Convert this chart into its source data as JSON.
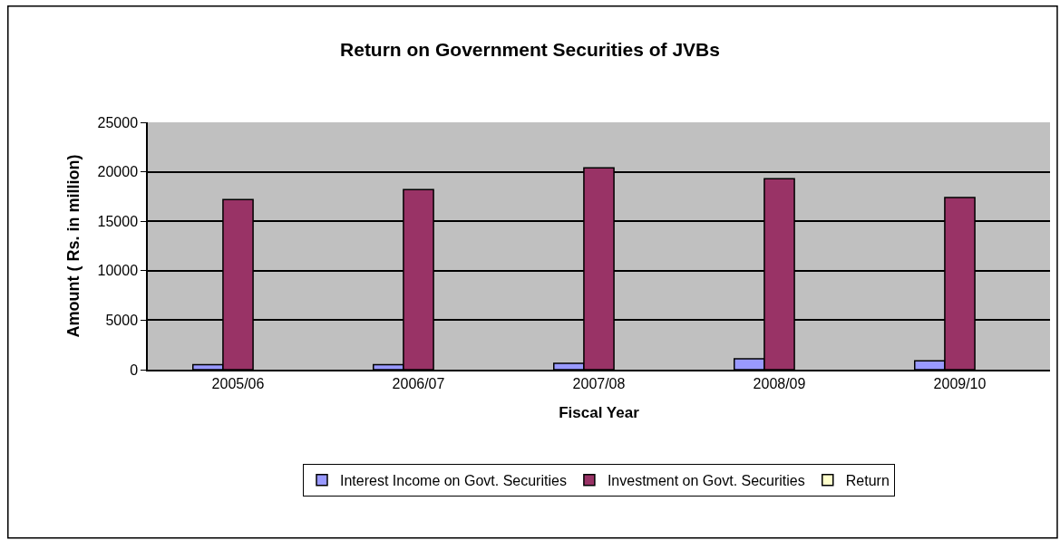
{
  "chart_data": {
    "type": "bar",
    "title": "Return on Government Securities of JVBs",
    "xlabel": "Fiscal Year",
    "ylabel": "Amount ( Rs. in million)",
    "categories": [
      "2005/06",
      "2006/07",
      "2007/08",
      "2008/09",
      "2009/10"
    ],
    "series": [
      {
        "name": "Interest Income on Govt. Securities",
        "color": "#9999ff",
        "values": [
          500,
          500,
          650,
          1100,
          900
        ]
      },
      {
        "name": "Investment on Govt. Securities",
        "color": "#993366",
        "values": [
          17200,
          18200,
          20400,
          19300,
          17400
        ]
      },
      {
        "name": "Return",
        "color": "#ffffcc",
        "values": [
          null,
          null,
          null,
          null,
          null
        ]
      }
    ],
    "ylim": [
      0,
      25000
    ],
    "yticks": [
      0,
      5000,
      10000,
      15000,
      20000,
      25000
    ],
    "grid": "y",
    "legend": "bottom"
  }
}
